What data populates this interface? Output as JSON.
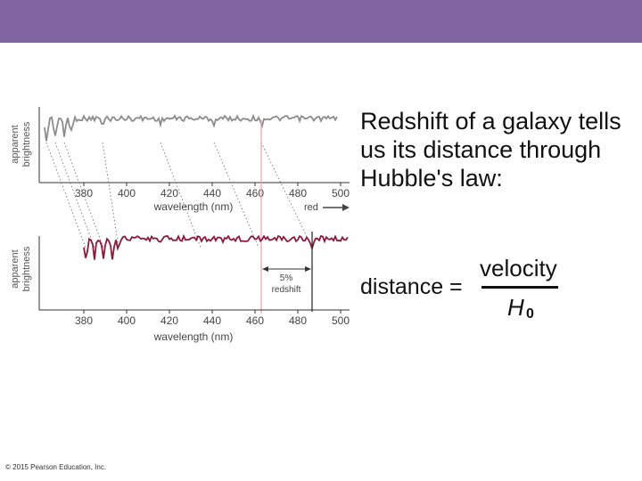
{
  "slide": {
    "header_color": "#8064a2",
    "bullet": "Redshift of a galaxy tells us its distance through Hubble's law:",
    "equation": {
      "lhs": "distance =",
      "numerator": "velocity",
      "denominator": "H",
      "denominator_subscript": "0"
    },
    "copyright": "© 2015 Pearson Education, Inc."
  },
  "figure": {
    "top_panel": {
      "ylabel": [
        "apparent",
        "brightness"
      ],
      "xlabel": "wavelength (nm)",
      "ticks": [
        "380",
        "400",
        "420",
        "440",
        "460",
        "480",
        "500"
      ],
      "arrow_label": "red",
      "line_color": "#8c8c8c"
    },
    "bottom_panel": {
      "ylabel": [
        "apparent",
        "brightness"
      ],
      "xlabel": "wavelength (nm)",
      "ticks": [
        "380",
        "400",
        "420",
        "440",
        "460",
        "480",
        "500"
      ],
      "redshift_label": [
        "5%",
        "redshift"
      ],
      "line_color": "#8b1a3c"
    },
    "reference_line_color": "#e8a0a8"
  }
}
